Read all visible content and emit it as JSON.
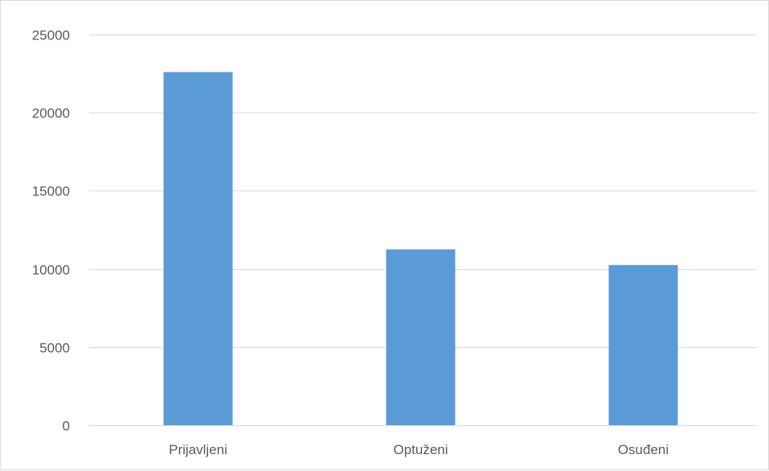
{
  "chart_data": {
    "type": "bar",
    "title": "",
    "xlabel": "",
    "ylabel": "",
    "categories": [
      "Prijavljeni",
      "Optuženi",
      "Osuđeni"
    ],
    "values": [
      22600,
      11250,
      10250
    ],
    "ylim": [
      0,
      25000
    ],
    "yticks": [
      "0",
      "5000",
      "10000",
      "15000",
      "20000",
      "25000"
    ],
    "grid": true,
    "legend": "none",
    "bar_color": "#5b9bd5"
  }
}
